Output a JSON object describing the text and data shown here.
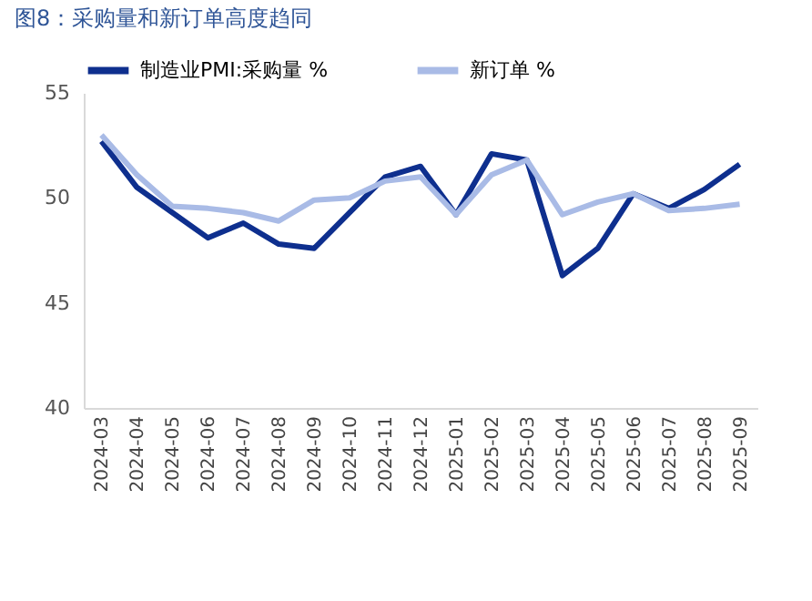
{
  "chart_data": {
    "type": "line",
    "title": "图8：采购量和新订单高度趋同",
    "categories": [
      "2024-03",
      "2024-04",
      "2024-05",
      "2024-06",
      "2024-07",
      "2024-08",
      "2024-09",
      "2024-10",
      "2024-11",
      "2024-12",
      "2025-01",
      "2025-02",
      "2025-03",
      "2025-04",
      "2025-05",
      "2025-06",
      "2025-07",
      "2025-08",
      "2025-09"
    ],
    "series": [
      {
        "name": "制造业PMI:采购量 %",
        "color": "#0e2f8e",
        "values": [
          52.7,
          50.5,
          49.3,
          48.1,
          48.8,
          47.8,
          47.6,
          49.3,
          51.0,
          51.5,
          49.2,
          52.1,
          51.8,
          46.3,
          47.6,
          50.2,
          49.5,
          50.4,
          51.6
        ]
      },
      {
        "name": "新订单 %",
        "color": "#a9bbe6",
        "values": [
          53.0,
          51.1,
          49.6,
          49.5,
          49.3,
          48.9,
          49.9,
          50.0,
          50.8,
          51.0,
          49.2,
          51.1,
          51.8,
          49.2,
          49.8,
          50.2,
          49.4,
          49.5,
          49.7
        ]
      }
    ],
    "ylim": [
      40,
      55
    ],
    "yticks": [
      40,
      45,
      50,
      55
    ],
    "grid": false,
    "legend": "top"
  }
}
